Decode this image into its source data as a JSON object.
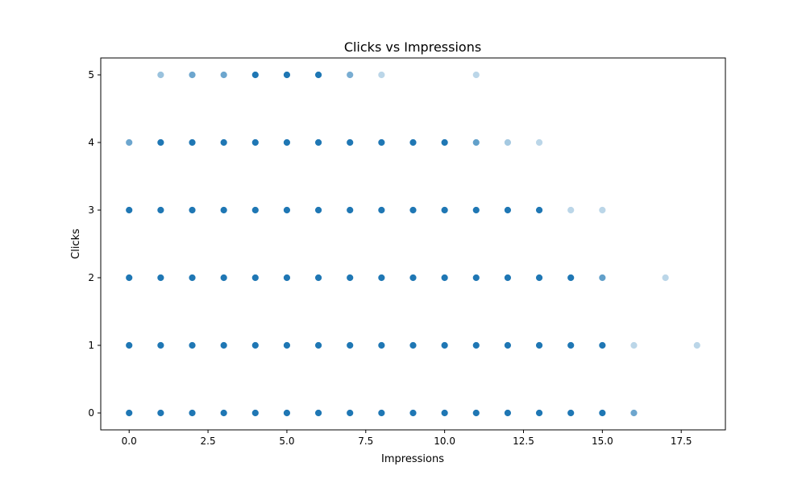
{
  "chart_data": {
    "type": "scatter",
    "title": "Clicks vs Impressions",
    "xlabel": "Impressions",
    "ylabel": "Clicks",
    "xlim": [
      -0.9,
      18.9
    ],
    "ylim": [
      -0.25,
      5.25
    ],
    "x_ticks": [
      0.0,
      2.5,
      5.0,
      7.5,
      10.0,
      12.5,
      15.0,
      17.5
    ],
    "x_tick_labels": [
      "0.0",
      "2.5",
      "5.0",
      "7.5",
      "10.0",
      "12.5",
      "15.0",
      "17.5"
    ],
    "y_ticks": [
      0,
      1,
      2,
      3,
      4,
      5
    ],
    "y_tick_labels": [
      "0",
      "1",
      "2",
      "3",
      "4",
      "5"
    ],
    "grid": false,
    "marker_color": "#1f77b4",
    "points": [
      {
        "x": 0,
        "y": 0,
        "alpha": 1.0
      },
      {
        "x": 1,
        "y": 0,
        "alpha": 1.0
      },
      {
        "x": 2,
        "y": 0,
        "alpha": 1.0
      },
      {
        "x": 3,
        "y": 0,
        "alpha": 1.0
      },
      {
        "x": 4,
        "y": 0,
        "alpha": 1.0
      },
      {
        "x": 5,
        "y": 0,
        "alpha": 1.0
      },
      {
        "x": 6,
        "y": 0,
        "alpha": 1.0
      },
      {
        "x": 7,
        "y": 0,
        "alpha": 1.0
      },
      {
        "x": 8,
        "y": 0,
        "alpha": 1.0
      },
      {
        "x": 9,
        "y": 0,
        "alpha": 1.0
      },
      {
        "x": 10,
        "y": 0,
        "alpha": 1.0
      },
      {
        "x": 11,
        "y": 0,
        "alpha": 1.0
      },
      {
        "x": 12,
        "y": 0,
        "alpha": 1.0
      },
      {
        "x": 13,
        "y": 0,
        "alpha": 1.0
      },
      {
        "x": 14,
        "y": 0,
        "alpha": 1.0
      },
      {
        "x": 15,
        "y": 0,
        "alpha": 1.0
      },
      {
        "x": 16,
        "y": 0,
        "alpha": 0.65
      },
      {
        "x": 0,
        "y": 1,
        "alpha": 1.0
      },
      {
        "x": 1,
        "y": 1,
        "alpha": 1.0
      },
      {
        "x": 2,
        "y": 1,
        "alpha": 1.0
      },
      {
        "x": 3,
        "y": 1,
        "alpha": 1.0
      },
      {
        "x": 4,
        "y": 1,
        "alpha": 1.0
      },
      {
        "x": 5,
        "y": 1,
        "alpha": 1.0
      },
      {
        "x": 6,
        "y": 1,
        "alpha": 1.0
      },
      {
        "x": 7,
        "y": 1,
        "alpha": 1.0
      },
      {
        "x": 8,
        "y": 1,
        "alpha": 1.0
      },
      {
        "x": 9,
        "y": 1,
        "alpha": 1.0
      },
      {
        "x": 10,
        "y": 1,
        "alpha": 1.0
      },
      {
        "x": 11,
        "y": 1,
        "alpha": 1.0
      },
      {
        "x": 12,
        "y": 1,
        "alpha": 1.0
      },
      {
        "x": 13,
        "y": 1,
        "alpha": 1.0
      },
      {
        "x": 14,
        "y": 1,
        "alpha": 1.0
      },
      {
        "x": 15,
        "y": 1,
        "alpha": 1.0
      },
      {
        "x": 16,
        "y": 1,
        "alpha": 0.3
      },
      {
        "x": 18,
        "y": 1,
        "alpha": 0.3
      },
      {
        "x": 0,
        "y": 2,
        "alpha": 1.0
      },
      {
        "x": 1,
        "y": 2,
        "alpha": 1.0
      },
      {
        "x": 2,
        "y": 2,
        "alpha": 1.0
      },
      {
        "x": 3,
        "y": 2,
        "alpha": 1.0
      },
      {
        "x": 4,
        "y": 2,
        "alpha": 1.0
      },
      {
        "x": 5,
        "y": 2,
        "alpha": 1.0
      },
      {
        "x": 6,
        "y": 2,
        "alpha": 1.0
      },
      {
        "x": 7,
        "y": 2,
        "alpha": 1.0
      },
      {
        "x": 8,
        "y": 2,
        "alpha": 1.0
      },
      {
        "x": 9,
        "y": 2,
        "alpha": 1.0
      },
      {
        "x": 10,
        "y": 2,
        "alpha": 1.0
      },
      {
        "x": 11,
        "y": 2,
        "alpha": 1.0
      },
      {
        "x": 12,
        "y": 2,
        "alpha": 1.0
      },
      {
        "x": 13,
        "y": 2,
        "alpha": 1.0
      },
      {
        "x": 14,
        "y": 2,
        "alpha": 1.0
      },
      {
        "x": 15,
        "y": 2,
        "alpha": 0.7
      },
      {
        "x": 17,
        "y": 2,
        "alpha": 0.3
      },
      {
        "x": 0,
        "y": 3,
        "alpha": 1.0
      },
      {
        "x": 1,
        "y": 3,
        "alpha": 1.0
      },
      {
        "x": 2,
        "y": 3,
        "alpha": 1.0
      },
      {
        "x": 3,
        "y": 3,
        "alpha": 1.0
      },
      {
        "x": 4,
        "y": 3,
        "alpha": 1.0
      },
      {
        "x": 5,
        "y": 3,
        "alpha": 1.0
      },
      {
        "x": 6,
        "y": 3,
        "alpha": 1.0
      },
      {
        "x": 7,
        "y": 3,
        "alpha": 1.0
      },
      {
        "x": 8,
        "y": 3,
        "alpha": 1.0
      },
      {
        "x": 9,
        "y": 3,
        "alpha": 1.0
      },
      {
        "x": 10,
        "y": 3,
        "alpha": 1.0
      },
      {
        "x": 11,
        "y": 3,
        "alpha": 1.0
      },
      {
        "x": 12,
        "y": 3,
        "alpha": 1.0
      },
      {
        "x": 13,
        "y": 3,
        "alpha": 1.0
      },
      {
        "x": 14,
        "y": 3,
        "alpha": 0.3
      },
      {
        "x": 15,
        "y": 3,
        "alpha": 0.3
      },
      {
        "x": 0,
        "y": 4,
        "alpha": 0.65
      },
      {
        "x": 1,
        "y": 4,
        "alpha": 1.0
      },
      {
        "x": 2,
        "y": 4,
        "alpha": 1.0
      },
      {
        "x": 3,
        "y": 4,
        "alpha": 1.0
      },
      {
        "x": 4,
        "y": 4,
        "alpha": 1.0
      },
      {
        "x": 5,
        "y": 4,
        "alpha": 1.0
      },
      {
        "x": 6,
        "y": 4,
        "alpha": 1.0
      },
      {
        "x": 7,
        "y": 4,
        "alpha": 1.0
      },
      {
        "x": 8,
        "y": 4,
        "alpha": 1.0
      },
      {
        "x": 9,
        "y": 4,
        "alpha": 1.0
      },
      {
        "x": 10,
        "y": 4,
        "alpha": 1.0
      },
      {
        "x": 11,
        "y": 4,
        "alpha": 0.7
      },
      {
        "x": 12,
        "y": 4,
        "alpha": 0.4
      },
      {
        "x": 13,
        "y": 4,
        "alpha": 0.3
      },
      {
        "x": 1,
        "y": 5,
        "alpha": 0.45
      },
      {
        "x": 2,
        "y": 5,
        "alpha": 0.65
      },
      {
        "x": 3,
        "y": 5,
        "alpha": 0.65
      },
      {
        "x": 4,
        "y": 5,
        "alpha": 1.0
      },
      {
        "x": 5,
        "y": 5,
        "alpha": 1.0
      },
      {
        "x": 6,
        "y": 5,
        "alpha": 1.0
      },
      {
        "x": 7,
        "y": 5,
        "alpha": 0.6
      },
      {
        "x": 8,
        "y": 5,
        "alpha": 0.3
      },
      {
        "x": 11,
        "y": 5,
        "alpha": 0.3
      }
    ]
  }
}
